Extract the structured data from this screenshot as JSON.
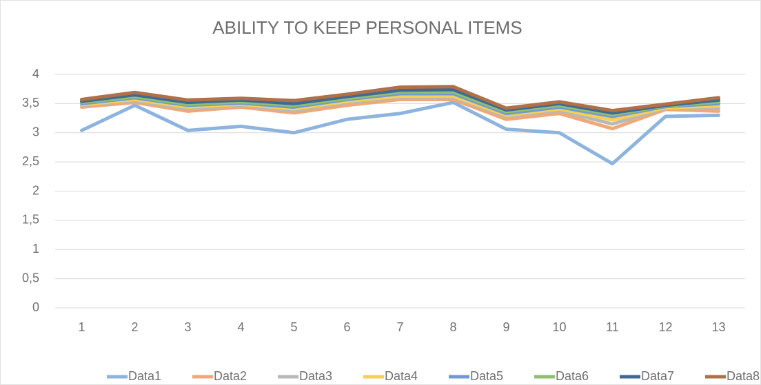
{
  "chart_data": {
    "type": "line",
    "title": "ABILITY TO KEEP PERSONAL ITEMS",
    "categories": [
      "1",
      "2",
      "3",
      "4",
      "5",
      "6",
      "7",
      "8",
      "9",
      "10",
      "11",
      "12",
      "13"
    ],
    "ylim": [
      0,
      4
    ],
    "yticks": [
      0,
      {
        "value": 0.5,
        "label": "0,5"
      },
      1,
      {
        "value": 1.5,
        "label": "1,5"
      },
      2,
      {
        "value": 2.5,
        "label": "2,5"
      },
      3,
      {
        "value": 3.5,
        "label": "3,5"
      },
      4
    ],
    "grid": true,
    "legend": "bottom",
    "series": [
      {
        "name": "Data1",
        "color": "#8db3df",
        "values": [
          3.04,
          3.47,
          3.04,
          3.11,
          3.0,
          3.23,
          3.33,
          3.52,
          3.06,
          3.0,
          2.47,
          3.28,
          3.3
        ]
      },
      {
        "name": "Data2",
        "color": "#f0a878",
        "values": [
          3.44,
          3.52,
          3.37,
          3.44,
          3.34,
          3.47,
          3.57,
          3.57,
          3.23,
          3.33,
          3.07,
          3.4,
          3.37
        ]
      },
      {
        "name": "Data3",
        "color": "#b8b8b8",
        "values": [
          3.47,
          3.55,
          3.41,
          3.47,
          3.38,
          3.52,
          3.61,
          3.61,
          3.28,
          3.38,
          3.15,
          3.42,
          3.42
        ]
      },
      {
        "name": "Data4",
        "color": "#f7cf55",
        "values": [
          3.48,
          3.57,
          3.44,
          3.49,
          3.41,
          3.54,
          3.63,
          3.63,
          3.3,
          3.41,
          3.22,
          3.43,
          3.46
        ]
      },
      {
        "name": "Data5",
        "color": "#6f9ad6",
        "values": [
          3.5,
          3.6,
          3.47,
          3.51,
          3.44,
          3.57,
          3.67,
          3.67,
          3.33,
          3.44,
          3.28,
          3.45,
          3.5
        ]
      },
      {
        "name": "Data6",
        "color": "#8fc06d",
        "values": [
          3.52,
          3.62,
          3.49,
          3.53,
          3.47,
          3.59,
          3.7,
          3.7,
          3.36,
          3.47,
          3.31,
          3.46,
          3.53
        ]
      },
      {
        "name": "Data7",
        "color": "#3d6a96",
        "values": [
          3.54,
          3.65,
          3.52,
          3.56,
          3.5,
          3.62,
          3.73,
          3.74,
          3.39,
          3.5,
          3.34,
          3.47,
          3.56
        ]
      },
      {
        "name": "Data8",
        "color": "#b07048",
        "values": [
          3.57,
          3.69,
          3.56,
          3.59,
          3.55,
          3.66,
          3.78,
          3.79,
          3.42,
          3.53,
          3.38,
          3.49,
          3.6
        ]
      }
    ]
  }
}
